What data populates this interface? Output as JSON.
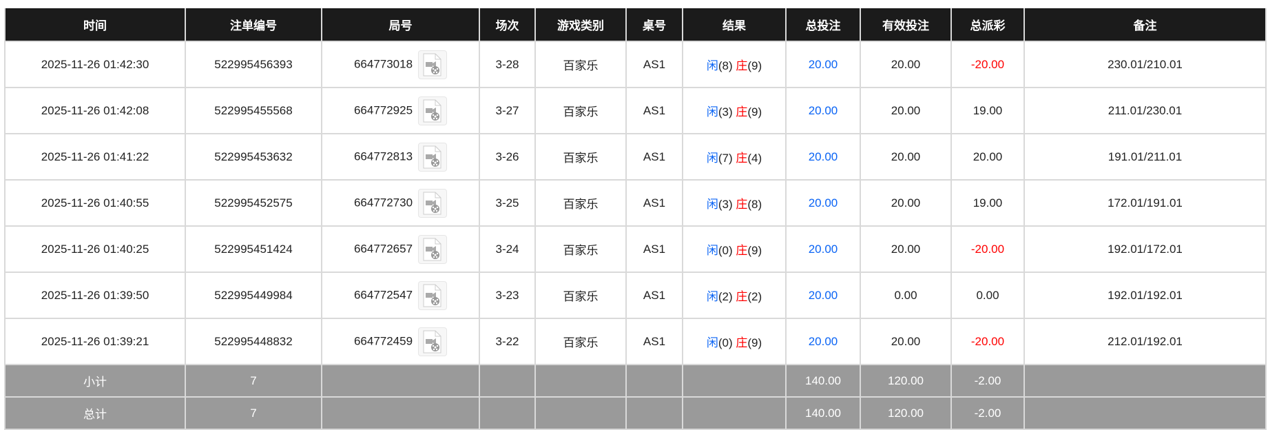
{
  "headers": [
    "时间",
    "注单编号",
    "局号",
    "场次",
    "游戏类别",
    "桌号",
    "结果",
    "总投注",
    "有效投注",
    "总派彩",
    "备注"
  ],
  "rows": [
    {
      "time": "2025-11-26 01:42:30",
      "bet_id": "522995456393",
      "round": "664773018",
      "shoe": "3-28",
      "game": "百家乐",
      "table": "AS1",
      "player_label": "闲",
      "player": "(8)",
      "banker_label": "庄",
      "banker": "(9)",
      "total_bet": "20.00",
      "valid_bet": "20.00",
      "payout": "-20.00",
      "payout_negative": true,
      "remark": "230.01/210.01"
    },
    {
      "time": "2025-11-26 01:42:08",
      "bet_id": "522995455568",
      "round": "664772925",
      "shoe": "3-27",
      "game": "百家乐",
      "table": "AS1",
      "player_label": "闲",
      "player": "(3)",
      "banker_label": "庄",
      "banker": "(9)",
      "total_bet": "20.00",
      "valid_bet": "20.00",
      "payout": "19.00",
      "payout_negative": false,
      "remark": "211.01/230.01"
    },
    {
      "time": "2025-11-26 01:41:22",
      "bet_id": "522995453632",
      "round": "664772813",
      "shoe": "3-26",
      "game": "百家乐",
      "table": "AS1",
      "player_label": "闲",
      "player": "(7)",
      "banker_label": "庄",
      "banker": "(4)",
      "total_bet": "20.00",
      "valid_bet": "20.00",
      "payout": "20.00",
      "payout_negative": false,
      "remark": "191.01/211.01"
    },
    {
      "time": "2025-11-26 01:40:55",
      "bet_id": "522995452575",
      "round": "664772730",
      "shoe": "3-25",
      "game": "百家乐",
      "table": "AS1",
      "player_label": "闲",
      "player": "(3)",
      "banker_label": "庄",
      "banker": "(8)",
      "total_bet": "20.00",
      "valid_bet": "20.00",
      "payout": "19.00",
      "payout_negative": false,
      "remark": "172.01/191.01"
    },
    {
      "time": "2025-11-26 01:40:25",
      "bet_id": "522995451424",
      "round": "664772657",
      "shoe": "3-24",
      "game": "百家乐",
      "table": "AS1",
      "player_label": "闲",
      "player": "(0)",
      "banker_label": "庄",
      "banker": "(9)",
      "total_bet": "20.00",
      "valid_bet": "20.00",
      "payout": "-20.00",
      "payout_negative": true,
      "remark": "192.01/172.01"
    },
    {
      "time": "2025-11-26 01:39:50",
      "bet_id": "522995449984",
      "round": "664772547",
      "shoe": "3-23",
      "game": "百家乐",
      "table": "AS1",
      "player_label": "闲",
      "player": "(2)",
      "banker_label": "庄",
      "banker": "(2)",
      "total_bet": "20.00",
      "valid_bet": "0.00",
      "payout": "0.00",
      "payout_negative": false,
      "remark": "192.01/192.01"
    },
    {
      "time": "2025-11-26 01:39:21",
      "bet_id": "522995448832",
      "round": "664772459",
      "shoe": "3-22",
      "game": "百家乐",
      "table": "AS1",
      "player_label": "闲",
      "player": "(0)",
      "banker_label": "庄",
      "banker": "(9)",
      "total_bet": "20.00",
      "valid_bet": "20.00",
      "payout": "-20.00",
      "payout_negative": true,
      "remark": "212.01/192.01"
    }
  ],
  "subtotal": {
    "label": "小计",
    "count": "7",
    "total_bet": "140.00",
    "valid_bet": "120.00",
    "payout": "-2.00"
  },
  "grandtotal": {
    "label": "总计",
    "count": "7",
    "total_bet": "140.00",
    "valid_bet": "120.00",
    "payout": "-2.00"
  },
  "colors": {
    "header_bg": "#1b1b1b",
    "summary_bg": "#9a9a9a",
    "blue": "#0a64f5",
    "red": "#ff0000"
  },
  "icons": {
    "replay": "video-file-icon"
  }
}
